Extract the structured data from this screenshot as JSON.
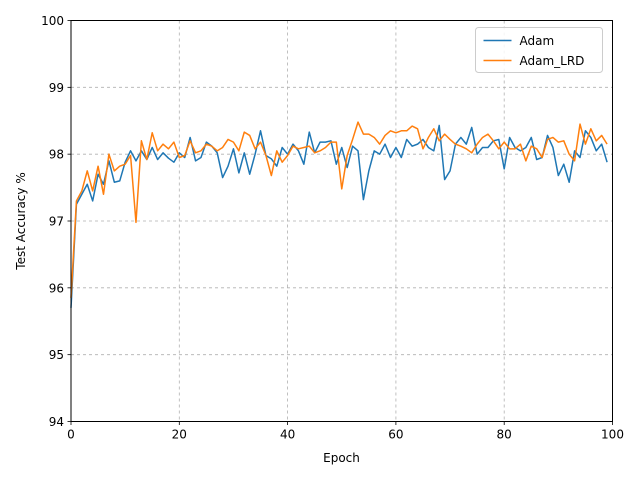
{
  "chart_data": {
    "type": "line",
    "title": "",
    "xlabel": "Epoch",
    "ylabel": "Test Accuracy %",
    "xlim": [
      0,
      100
    ],
    "ylim": [
      94,
      100
    ],
    "xticks": [
      0,
      20,
      40,
      60,
      80,
      100
    ],
    "yticks": [
      94,
      95,
      96,
      97,
      98,
      99,
      100
    ],
    "grid": true,
    "grid_style": "dashed",
    "legend_position": "top-right",
    "x": [
      0,
      1,
      2,
      3,
      4,
      5,
      6,
      7,
      8,
      9,
      10,
      11,
      12,
      13,
      14,
      15,
      16,
      17,
      18,
      19,
      20,
      21,
      22,
      23,
      24,
      25,
      26,
      27,
      28,
      29,
      30,
      31,
      32,
      33,
      34,
      35,
      36,
      37,
      38,
      39,
      40,
      41,
      42,
      43,
      44,
      45,
      46,
      47,
      48,
      49,
      50,
      51,
      52,
      53,
      54,
      55,
      56,
      57,
      58,
      59,
      60,
      61,
      62,
      63,
      64,
      65,
      66,
      67,
      68,
      69,
      70,
      71,
      72,
      73,
      74,
      75,
      76,
      77,
      78,
      79,
      80,
      81,
      82,
      83,
      84,
      85,
      86,
      87,
      88,
      89,
      90,
      91,
      92,
      93,
      94,
      95,
      96,
      97,
      98,
      99
    ],
    "series": [
      {
        "name": "Adam",
        "color": "#1f77b4",
        "values": [
          95.7,
          97.25,
          97.4,
          97.55,
          97.3,
          97.7,
          97.55,
          97.9,
          97.58,
          97.6,
          97.88,
          98.05,
          97.9,
          98.05,
          97.92,
          98.1,
          97.92,
          98.02,
          97.94,
          97.88,
          98.02,
          97.95,
          98.25,
          97.9,
          97.95,
          98.18,
          98.12,
          98.02,
          97.65,
          97.82,
          98.08,
          97.72,
          98.02,
          97.7,
          98.0,
          98.35,
          97.98,
          97.93,
          97.82,
          98.1,
          98.0,
          98.15,
          98.05,
          97.85,
          98.33,
          98.02,
          98.18,
          98.18,
          98.2,
          97.85,
          98.1,
          97.8,
          98.12,
          98.05,
          97.32,
          97.75,
          98.05,
          98.0,
          98.15,
          97.95,
          98.1,
          97.95,
          98.22,
          98.12,
          98.15,
          98.22,
          98.1,
          98.05,
          98.43,
          97.62,
          97.75,
          98.15,
          98.25,
          98.15,
          98.4,
          98.0,
          98.1,
          98.1,
          98.2,
          98.22,
          97.78,
          98.25,
          98.1,
          98.05,
          98.1,
          98.25,
          97.92,
          97.95,
          98.28,
          98.1,
          97.68,
          97.85,
          97.58,
          98.05,
          97.95,
          98.35,
          98.25,
          98.05,
          98.15,
          97.88
        ]
      },
      {
        "name": "Adam_LRD",
        "color": "#ff7f0e",
        "values": [
          95.85,
          97.3,
          97.45,
          97.75,
          97.45,
          97.82,
          97.4,
          98.0,
          97.75,
          97.82,
          97.85,
          97.98,
          96.98,
          98.2,
          97.92,
          98.32,
          98.05,
          98.15,
          98.08,
          98.18,
          97.95,
          97.98,
          98.2,
          98.02,
          98.05,
          98.15,
          98.12,
          98.05,
          98.1,
          98.22,
          98.18,
          98.05,
          98.33,
          98.28,
          98.08,
          98.18,
          97.98,
          97.68,
          98.05,
          97.88,
          97.98,
          98.12,
          98.08,
          98.1,
          98.12,
          98.02,
          98.05,
          98.1,
          98.18,
          98.18,
          97.48,
          97.98,
          98.22,
          98.48,
          98.3,
          98.3,
          98.25,
          98.15,
          98.28,
          98.35,
          98.32,
          98.35,
          98.35,
          98.42,
          98.38,
          98.08,
          98.25,
          98.38,
          98.2,
          98.3,
          98.22,
          98.15,
          98.12,
          98.08,
          98.02,
          98.15,
          98.25,
          98.3,
          98.2,
          98.08,
          98.18,
          98.08,
          98.08,
          98.15,
          97.9,
          98.12,
          98.08,
          97.95,
          98.22,
          98.25,
          98.18,
          98.2,
          98.0,
          97.9,
          98.45,
          98.15,
          98.38,
          98.2,
          98.28,
          98.15
        ]
      }
    ]
  }
}
